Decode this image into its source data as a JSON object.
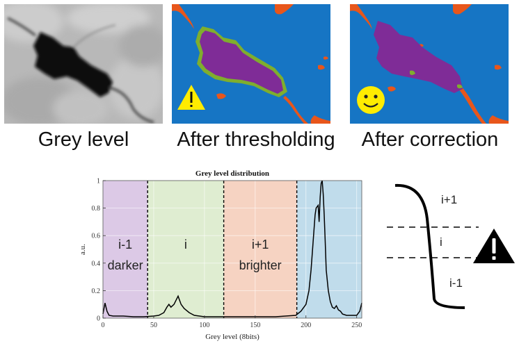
{
  "panels": [
    {
      "caption": "Grey level",
      "icon": "none"
    },
    {
      "caption": "After thresholding",
      "icon": "warning-icon"
    },
    {
      "caption": "After correction",
      "icon": "smiley-icon"
    }
  ],
  "colors": {
    "blue": "#1675c4",
    "purple": "#7f2c97",
    "orange": "#e8561b",
    "green": "#7fae2e",
    "yellow": "#ffec00"
  },
  "chart_data": {
    "type": "line",
    "title": "Grey level distribution",
    "xlabel": "Grey level (8bits)",
    "ylabel": "a.u.",
    "xlim": [
      0,
      255
    ],
    "ylim": [
      0,
      1
    ],
    "xticks": [
      0,
      50,
      100,
      150,
      200,
      250
    ],
    "yticks": [
      0,
      0.2,
      0.4,
      0.6,
      0.8,
      1
    ],
    "ytick_labels": [
      "0",
      "0.2",
      "0.4",
      "0.6",
      "0.8",
      "1"
    ],
    "thresholds": [
      44,
      119,
      191
    ],
    "regions": [
      {
        "from": 0,
        "to": 44,
        "color": "#dcc9e6",
        "label_top": "i-1",
        "label_bottom": "darker"
      },
      {
        "from": 44,
        "to": 119,
        "color": "#dfedd1",
        "label_top": "i",
        "label_bottom": ""
      },
      {
        "from": 119,
        "to": 191,
        "color": "#f6d3c2",
        "label_top": "i+1",
        "label_bottom": "brighter"
      },
      {
        "from": 191,
        "to": 255,
        "color": "#c0dceb",
        "label_top": "",
        "label_bottom": ""
      }
    ],
    "x": [
      0,
      2,
      4,
      6,
      10,
      20,
      30,
      40,
      50,
      55,
      60,
      63,
      65,
      67,
      70,
      72,
      74,
      75,
      77,
      80,
      85,
      90,
      100,
      110,
      120,
      130,
      140,
      150,
      160,
      170,
      180,
      190,
      195,
      200,
      203,
      205,
      207,
      209,
      210,
      212,
      213,
      214,
      215,
      216,
      217,
      218,
      219,
      220,
      222,
      224,
      226,
      228,
      230,
      232,
      234,
      236,
      240,
      245,
      250,
      253,
      255
    ],
    "y": [
      0.03,
      0.11,
      0.05,
      0.02,
      0.015,
      0.015,
      0.01,
      0.01,
      0.015,
      0.02,
      0.04,
      0.08,
      0.1,
      0.08,
      0.1,
      0.13,
      0.16,
      0.14,
      0.1,
      0.07,
      0.04,
      0.02,
      0.01,
      0.01,
      0.01,
      0.01,
      0.01,
      0.01,
      0.01,
      0.01,
      0.015,
      0.02,
      0.05,
      0.1,
      0.2,
      0.35,
      0.55,
      0.75,
      0.8,
      0.82,
      0.7,
      0.88,
      0.98,
      1.0,
      0.9,
      0.75,
      0.55,
      0.35,
      0.2,
      0.12,
      0.08,
      0.07,
      0.09,
      0.06,
      0.05,
      0.03,
      0.02,
      0.02,
      0.02,
      0.05,
      0.11
    ]
  },
  "curve": {
    "labels": [
      "i+1",
      "i",
      "i-1"
    ],
    "icon": "warning-icon"
  }
}
